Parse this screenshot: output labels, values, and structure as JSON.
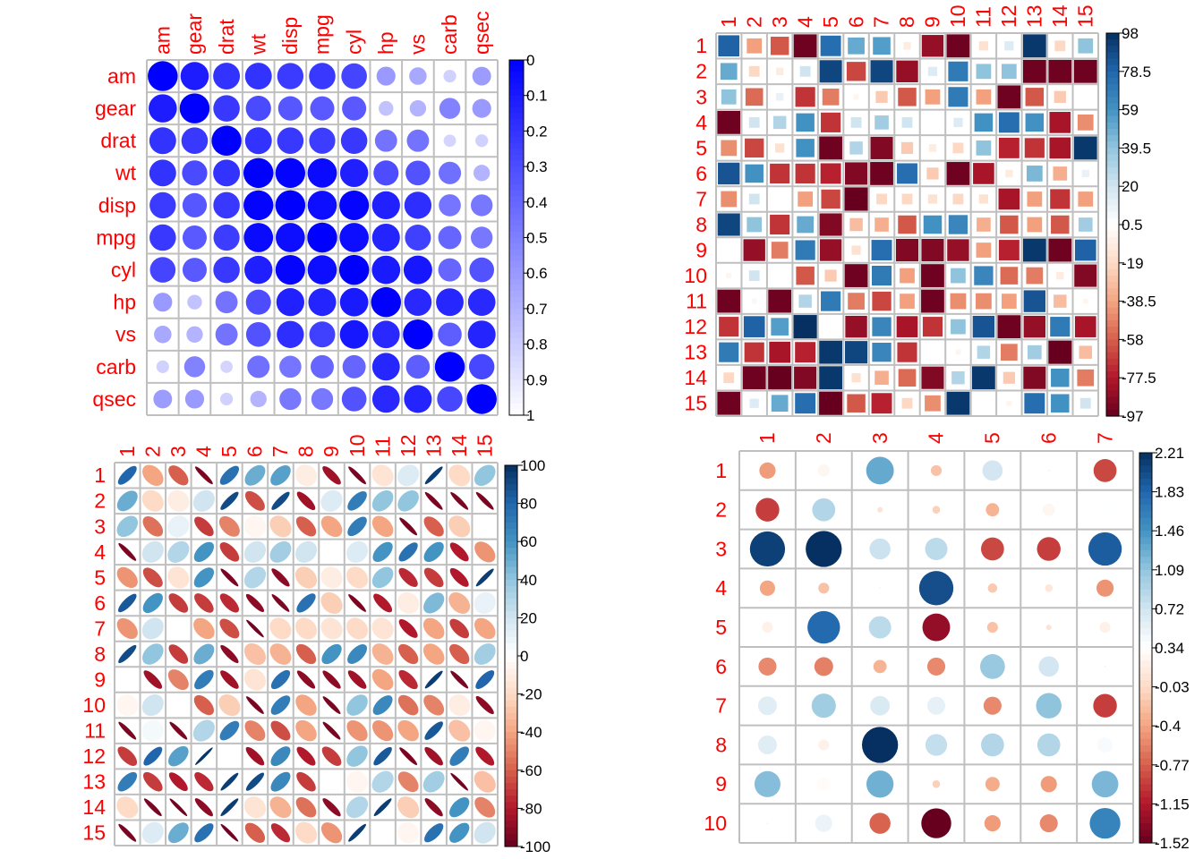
{
  "chart_data": [
    {
      "type": "heatmap",
      "glyph": "circle",
      "labels": [
        "am",
        "gear",
        "drat",
        "wt",
        "disp",
        "mpg",
        "cyl",
        "hp",
        "vs",
        "carb",
        "qsec"
      ],
      "colorbar": {
        "ticks": [
          "0",
          "0.1",
          "0.2",
          "0.3",
          "0.4",
          "0.5",
          "0.6",
          "0.7",
          "0.8",
          "0.9",
          "1"
        ],
        "range": [
          0,
          1
        ]
      },
      "matrix": [
        [
          1.0,
          0.89,
          0.8,
          0.8,
          0.77,
          0.78,
          0.73,
          0.4,
          0.34,
          0.18,
          0.39
        ],
        [
          0.89,
          1.0,
          0.78,
          0.71,
          0.66,
          0.65,
          0.65,
          0.24,
          0.3,
          0.49,
          0.4
        ],
        [
          0.8,
          0.78,
          1.0,
          0.8,
          0.78,
          0.76,
          0.78,
          0.55,
          0.55,
          0.17,
          0.18
        ],
        [
          0.8,
          0.71,
          0.8,
          1.0,
          0.99,
          0.96,
          0.88,
          0.7,
          0.68,
          0.56,
          0.3
        ],
        [
          0.77,
          0.66,
          0.78,
          0.99,
          1.0,
          0.95,
          0.98,
          0.87,
          0.82,
          0.54,
          0.53
        ],
        [
          0.78,
          0.65,
          0.76,
          0.96,
          0.95,
          1.0,
          0.95,
          0.86,
          0.75,
          0.6,
          0.53
        ],
        [
          0.73,
          0.65,
          0.78,
          0.88,
          0.98,
          0.95,
          1.0,
          0.9,
          0.91,
          0.6,
          0.68
        ],
        [
          0.4,
          0.24,
          0.55,
          0.7,
          0.87,
          0.86,
          0.9,
          1.0,
          0.84,
          0.85,
          0.84
        ],
        [
          0.34,
          0.3,
          0.55,
          0.68,
          0.82,
          0.75,
          0.91,
          0.84,
          1.0,
          0.63,
          0.86
        ],
        [
          0.18,
          0.49,
          0.17,
          0.56,
          0.54,
          0.6,
          0.6,
          0.85,
          0.63,
          1.0,
          0.72
        ],
        [
          0.39,
          0.4,
          0.18,
          0.3,
          0.53,
          0.53,
          0.68,
          0.84,
          0.86,
          0.72,
          1.0
        ]
      ]
    },
    {
      "type": "heatmap",
      "glyph": "square",
      "labels": [
        "1",
        "2",
        "3",
        "4",
        "5",
        "6",
        "7",
        "8",
        "9",
        "10",
        "11",
        "12",
        "13",
        "14",
        "15"
      ],
      "colorbar": {
        "ticks": [
          "98",
          "78.5",
          "59",
          "39.5",
          "20",
          "0.5",
          "-19",
          "-38.5",
          "-58",
          "-77.5",
          "-97"
        ],
        "range": [
          -97,
          98
        ]
      },
      "matrix": [
        [
          80,
          -40,
          -60,
          -95,
          75,
          50,
          55,
          -10,
          -85,
          -95,
          -15,
          15,
          95,
          -20,
          40
        ],
        [
          50,
          -20,
          -10,
          20,
          90,
          -65,
          90,
          -85,
          15,
          70,
          40,
          40,
          -95,
          -95,
          -95
        ],
        [
          40,
          -55,
          10,
          -70,
          -50,
          -5,
          -25,
          -60,
          -40,
          70,
          -40,
          -95,
          -60,
          -25,
          0
        ],
        [
          -95,
          20,
          30,
          60,
          -70,
          20,
          35,
          20,
          0,
          15,
          60,
          75,
          60,
          -80,
          -45
        ],
        [
          -45,
          -65,
          -15,
          60,
          -95,
          30,
          -90,
          -25,
          -10,
          -20,
          40,
          -75,
          -70,
          -80,
          95
        ],
        [
          85,
          60,
          -70,
          -70,
          -75,
          -90,
          -95,
          75,
          -25,
          -95,
          -80,
          -10,
          45,
          -35,
          10
        ],
        [
          -45,
          20,
          0,
          -40,
          -65,
          -97,
          -20,
          -20,
          -15,
          -20,
          -15,
          -80,
          -40,
          -70,
          -40
        ],
        [
          90,
          40,
          -70,
          50,
          -90,
          -30,
          -35,
          -60,
          60,
          65,
          -35,
          -60,
          -40,
          -60,
          35
        ],
        [
          0,
          -85,
          -50,
          70,
          -85,
          -15,
          75,
          -90,
          -90,
          -85,
          -40,
          -75,
          95,
          -95,
          80
        ],
        [
          -5,
          20,
          0,
          -60,
          -25,
          -95,
          70,
          -40,
          -95,
          40,
          65,
          -55,
          -50,
          -10,
          -90
        ],
        [
          -95,
          5,
          -95,
          30,
          70,
          -50,
          -65,
          -40,
          -95,
          -45,
          -45,
          -40,
          85,
          -30,
          -5
        ],
        [
          -70,
          80,
          55,
          98,
          0,
          -85,
          65,
          -80,
          -70,
          40,
          85,
          -95,
          -85,
          70,
          -80
        ],
        [
          70,
          -70,
          -80,
          -75,
          95,
          90,
          65,
          -70,
          0,
          -5,
          30,
          -50,
          35,
          -97,
          -30
        ],
        [
          -20,
          -95,
          -97,
          -90,
          95,
          -15,
          -35,
          -55,
          -90,
          30,
          95,
          -25,
          -90,
          60,
          -50
        ],
        [
          -95,
          15,
          50,
          75,
          -97,
          -60,
          -75,
          -20,
          -45,
          95,
          0,
          -5,
          75,
          60,
          20
        ]
      ]
    },
    {
      "type": "heatmap",
      "glyph": "ellipse",
      "labels": [
        "1",
        "2",
        "3",
        "4",
        "5",
        "6",
        "7",
        "8",
        "9",
        "10",
        "11",
        "12",
        "13",
        "14",
        "15"
      ],
      "colorbar": {
        "ticks": [
          "100",
          "80",
          "60",
          "40",
          "20",
          "0",
          "-20",
          "-40",
          "-60",
          "-80",
          "-100"
        ],
        "range": [
          -100,
          100
        ]
      },
      "matrix": [
        [
          80,
          -40,
          -60,
          -95,
          75,
          50,
          55,
          -10,
          -85,
          -95,
          -15,
          15,
          95,
          -20,
          40
        ],
        [
          50,
          -20,
          -10,
          20,
          90,
          -65,
          90,
          -85,
          15,
          70,
          40,
          40,
          -95,
          -95,
          -95
        ],
        [
          40,
          -55,
          10,
          -70,
          -50,
          -5,
          -25,
          -60,
          -40,
          70,
          -40,
          -95,
          -60,
          -25,
          0
        ],
        [
          -95,
          20,
          30,
          60,
          -70,
          20,
          35,
          20,
          0,
          15,
          60,
          75,
          60,
          -80,
          -45
        ],
        [
          -45,
          -65,
          -15,
          60,
          -95,
          30,
          -90,
          -25,
          -10,
          -20,
          40,
          -75,
          -70,
          -80,
          95
        ],
        [
          85,
          60,
          -70,
          -70,
          -75,
          -90,
          -95,
          75,
          -25,
          -95,
          -80,
          -10,
          45,
          -35,
          10
        ],
        [
          -45,
          20,
          0,
          -40,
          -65,
          -97,
          -20,
          -20,
          -15,
          -20,
          -15,
          -80,
          -40,
          -70,
          -40
        ],
        [
          90,
          40,
          -70,
          50,
          -90,
          -30,
          -35,
          -60,
          60,
          65,
          -35,
          -60,
          -40,
          -60,
          35
        ],
        [
          0,
          -85,
          -50,
          70,
          -85,
          -15,
          75,
          -90,
          -90,
          -85,
          -40,
          -75,
          95,
          -95,
          80
        ],
        [
          -5,
          20,
          0,
          -60,
          -25,
          -95,
          70,
          -40,
          -95,
          40,
          65,
          -55,
          -50,
          -10,
          -90
        ],
        [
          -95,
          5,
          -95,
          30,
          70,
          -50,
          -65,
          -40,
          -95,
          -45,
          -45,
          -40,
          85,
          -30,
          -5
        ],
        [
          -70,
          80,
          55,
          98,
          0,
          -85,
          65,
          -80,
          -70,
          40,
          85,
          -95,
          -85,
          70,
          -80
        ],
        [
          70,
          -70,
          -80,
          -75,
          95,
          90,
          65,
          -70,
          0,
          -5,
          30,
          -50,
          35,
          -97,
          -30
        ],
        [
          -20,
          -95,
          -97,
          -90,
          95,
          -15,
          -35,
          -55,
          -90,
          30,
          95,
          -25,
          -90,
          60,
          -50
        ],
        [
          -95,
          15,
          50,
          75,
          -97,
          -60,
          -75,
          -20,
          -45,
          95,
          0,
          -5,
          75,
          60,
          20
        ]
      ]
    },
    {
      "type": "heatmap",
      "glyph": "circle",
      "row_labels": [
        "1",
        "2",
        "3",
        "4",
        "5",
        "6",
        "7",
        "8",
        "9",
        "10"
      ],
      "col_labels": [
        "1",
        "2",
        "3",
        "4",
        "5",
        "6",
        "7"
      ],
      "colorbar": {
        "ticks": [
          "2.21",
          "1.83",
          "1.46",
          "1.09",
          "0.72",
          "0.34",
          "-0.03",
          "-0.4",
          "-0.77",
          "-1.15",
          "-1.52"
        ],
        "range": [
          -1.52,
          2.21
        ]
      },
      "matrix": [
        [
          -0.45,
          0.25,
          1.3,
          -0.2,
          0.7,
          0.0,
          -0.9
        ],
        [
          -0.95,
          0.9,
          0.05,
          -0.1,
          -0.3,
          0.25,
          0.35
        ],
        [
          2.1,
          2.21,
          0.75,
          0.85,
          -0.9,
          -0.95,
          1.9
        ],
        [
          -0.4,
          -0.2,
          0.0,
          2.0,
          -0.15,
          0.1,
          -0.5
        ],
        [
          0.2,
          1.8,
          0.85,
          -1.3,
          -0.2,
          0.05,
          0.2
        ],
        [
          -0.55,
          -0.6,
          -0.3,
          -0.55,
          1.05,
          0.7,
          0.0
        ],
        [
          0.6,
          1.0,
          0.65,
          0.55,
          -0.55,
          1.1,
          -0.95
        ],
        [
          0.6,
          0.2,
          2.21,
          0.8,
          0.9,
          0.9,
          0.4
        ],
        [
          1.15,
          0.3,
          1.25,
          -0.1,
          -0.35,
          -0.45,
          1.2
        ],
        [
          0.0,
          0.5,
          -0.75,
          -1.52,
          -0.45,
          -0.55,
          1.6
        ]
      ]
    }
  ]
}
